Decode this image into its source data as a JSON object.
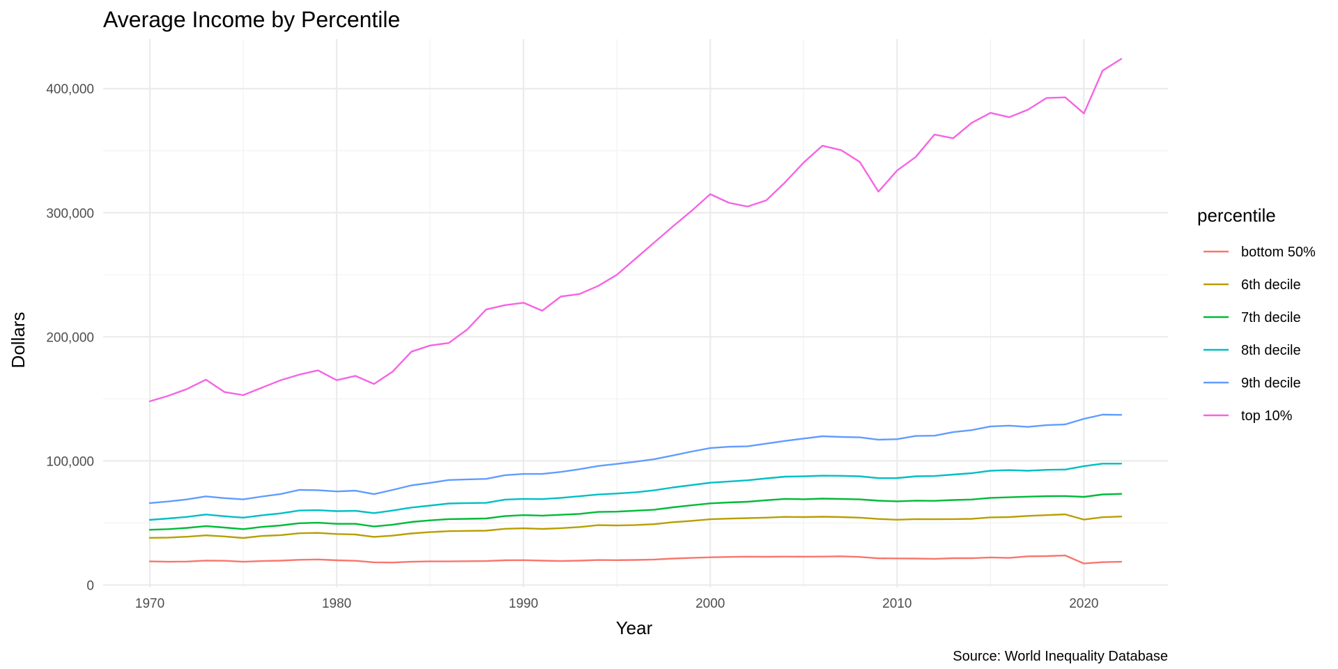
{
  "chart_data": {
    "type": "line",
    "title": "Average Income by Percentile",
    "xlabel": "Year",
    "ylabel": "Dollars",
    "caption": "Source: World Inequality Database",
    "legend_title": "percentile",
    "legend_position": "right",
    "grid": true,
    "xlim": [
      1967.5,
      2024.5
    ],
    "ylim": [
      -2000,
      440000
    ],
    "x_ticks": [
      1970,
      1980,
      1990,
      2000,
      2010,
      2020
    ],
    "y_ticks": [
      0,
      100000,
      200000,
      300000,
      400000
    ],
    "y_tick_labels": [
      "0",
      "100,000",
      "200,000",
      "300,000",
      "400,000"
    ],
    "x": [
      1970,
      1971,
      1972,
      1973,
      1974,
      1975,
      1976,
      1977,
      1978,
      1979,
      1980,
      1981,
      1982,
      1983,
      1984,
      1985,
      1986,
      1987,
      1988,
      1989,
      1990,
      1991,
      1992,
      1993,
      1994,
      1995,
      1996,
      1997,
      1998,
      1999,
      2000,
      2001,
      2002,
      2003,
      2004,
      2005,
      2006,
      2007,
      2008,
      2009,
      2010,
      2011,
      2012,
      2013,
      2014,
      2015,
      2016,
      2017,
      2018,
      2019,
      2020,
      2021,
      2022
    ],
    "series": [
      {
        "name": "bottom 50%",
        "color": "#F8766D",
        "values": [
          19000,
          18700,
          18900,
          19700,
          19500,
          18700,
          19300,
          19600,
          20300,
          20600,
          19900,
          19500,
          18300,
          18100,
          18700,
          19000,
          19000,
          19200,
          19300,
          19900,
          20000,
          19600,
          19300,
          19600,
          20100,
          20000,
          20200,
          20500,
          21300,
          21800,
          22300,
          22600,
          22800,
          22700,
          22900,
          22800,
          22900,
          23100,
          22600,
          21500,
          21400,
          21300,
          21100,
          21600,
          21600,
          22200,
          21800,
          23100,
          23300,
          23800,
          17300,
          18400,
          18700
        ]
      },
      {
        "name": "6th decile",
        "color": "#B79F00",
        "values": [
          38000,
          38200,
          38900,
          40000,
          39100,
          37900,
          39500,
          40200,
          41700,
          42000,
          41100,
          40700,
          38800,
          39800,
          41500,
          42600,
          43400,
          43600,
          43800,
          45300,
          45700,
          45200,
          45800,
          46700,
          48200,
          48000,
          48300,
          49000,
          50600,
          51700,
          53000,
          53500,
          53900,
          54300,
          54900,
          54700,
          55000,
          54700,
          54300,
          53200,
          52600,
          53100,
          53000,
          53100,
          53300,
          54500,
          54700,
          55700,
          56300,
          56900,
          52700,
          54600,
          55200
        ]
      },
      {
        "name": "7th decile",
        "color": "#00BA38",
        "values": [
          44500,
          45000,
          46000,
          47500,
          46300,
          45000,
          46800,
          48000,
          49800,
          50200,
          49300,
          49300,
          47200,
          48600,
          50800,
          52100,
          53100,
          53300,
          53600,
          55500,
          56300,
          55900,
          56600,
          57300,
          58900,
          59100,
          59900,
          60700,
          62600,
          64200,
          65800,
          66500,
          67100,
          68300,
          69400,
          69100,
          69600,
          69300,
          69000,
          67900,
          67400,
          68000,
          67800,
          68500,
          68900,
          70200,
          70700,
          71200,
          71600,
          71700,
          71000,
          73000,
          73400
        ]
      },
      {
        "name": "8th decile",
        "color": "#00BFC4",
        "values": [
          52500,
          53600,
          54900,
          56800,
          55400,
          54300,
          56200,
          57700,
          60000,
          60300,
          59500,
          59800,
          57900,
          60000,
          62400,
          64000,
          65700,
          66000,
          66200,
          68800,
          69400,
          69200,
          70200,
          71500,
          72900,
          73700,
          74700,
          76300,
          78600,
          80500,
          82400,
          83400,
          84400,
          85900,
          87300,
          87600,
          88100,
          88000,
          87600,
          86100,
          86200,
          87600,
          87800,
          89000,
          90100,
          92100,
          92600,
          92100,
          92800,
          93000,
          95800,
          97800,
          97800
        ]
      },
      {
        "name": "9th decile",
        "color": "#619CFF",
        "values": [
          66000,
          67300,
          69000,
          71400,
          70000,
          69000,
          71300,
          73300,
          76600,
          76400,
          75400,
          76000,
          73200,
          76600,
          80300,
          82300,
          84600,
          85100,
          85500,
          88500,
          89500,
          89500,
          91100,
          93300,
          95900,
          97600,
          99300,
          101400,
          104400,
          107500,
          110400,
          111400,
          111800,
          113900,
          116100,
          118000,
          119900,
          119300,
          119000,
          117100,
          117500,
          120100,
          120300,
          123200,
          124800,
          127800,
          128400,
          127400,
          128800,
          129400,
          133900,
          137300,
          137100
        ]
      },
      {
        "name": "top 10%",
        "color": "#F564E3",
        "values": [
          148000,
          152500,
          158000,
          165500,
          155500,
          153000,
          159000,
          165000,
          169500,
          173000,
          165000,
          168500,
          162000,
          172000,
          188000,
          193000,
          195000,
          206000,
          222000,
          225500,
          227500,
          221000,
          232500,
          234500,
          241000,
          250000,
          263000,
          276000,
          289000,
          301500,
          315000,
          308000,
          305000,
          310000,
          324500,
          340500,
          354000,
          350500,
          341000,
          317000,
          334000,
          345000,
          363000,
          360000,
          372500,
          380500,
          377000,
          383000,
          392500,
          393000,
          380000,
          414500,
          424000
        ]
      }
    ]
  }
}
